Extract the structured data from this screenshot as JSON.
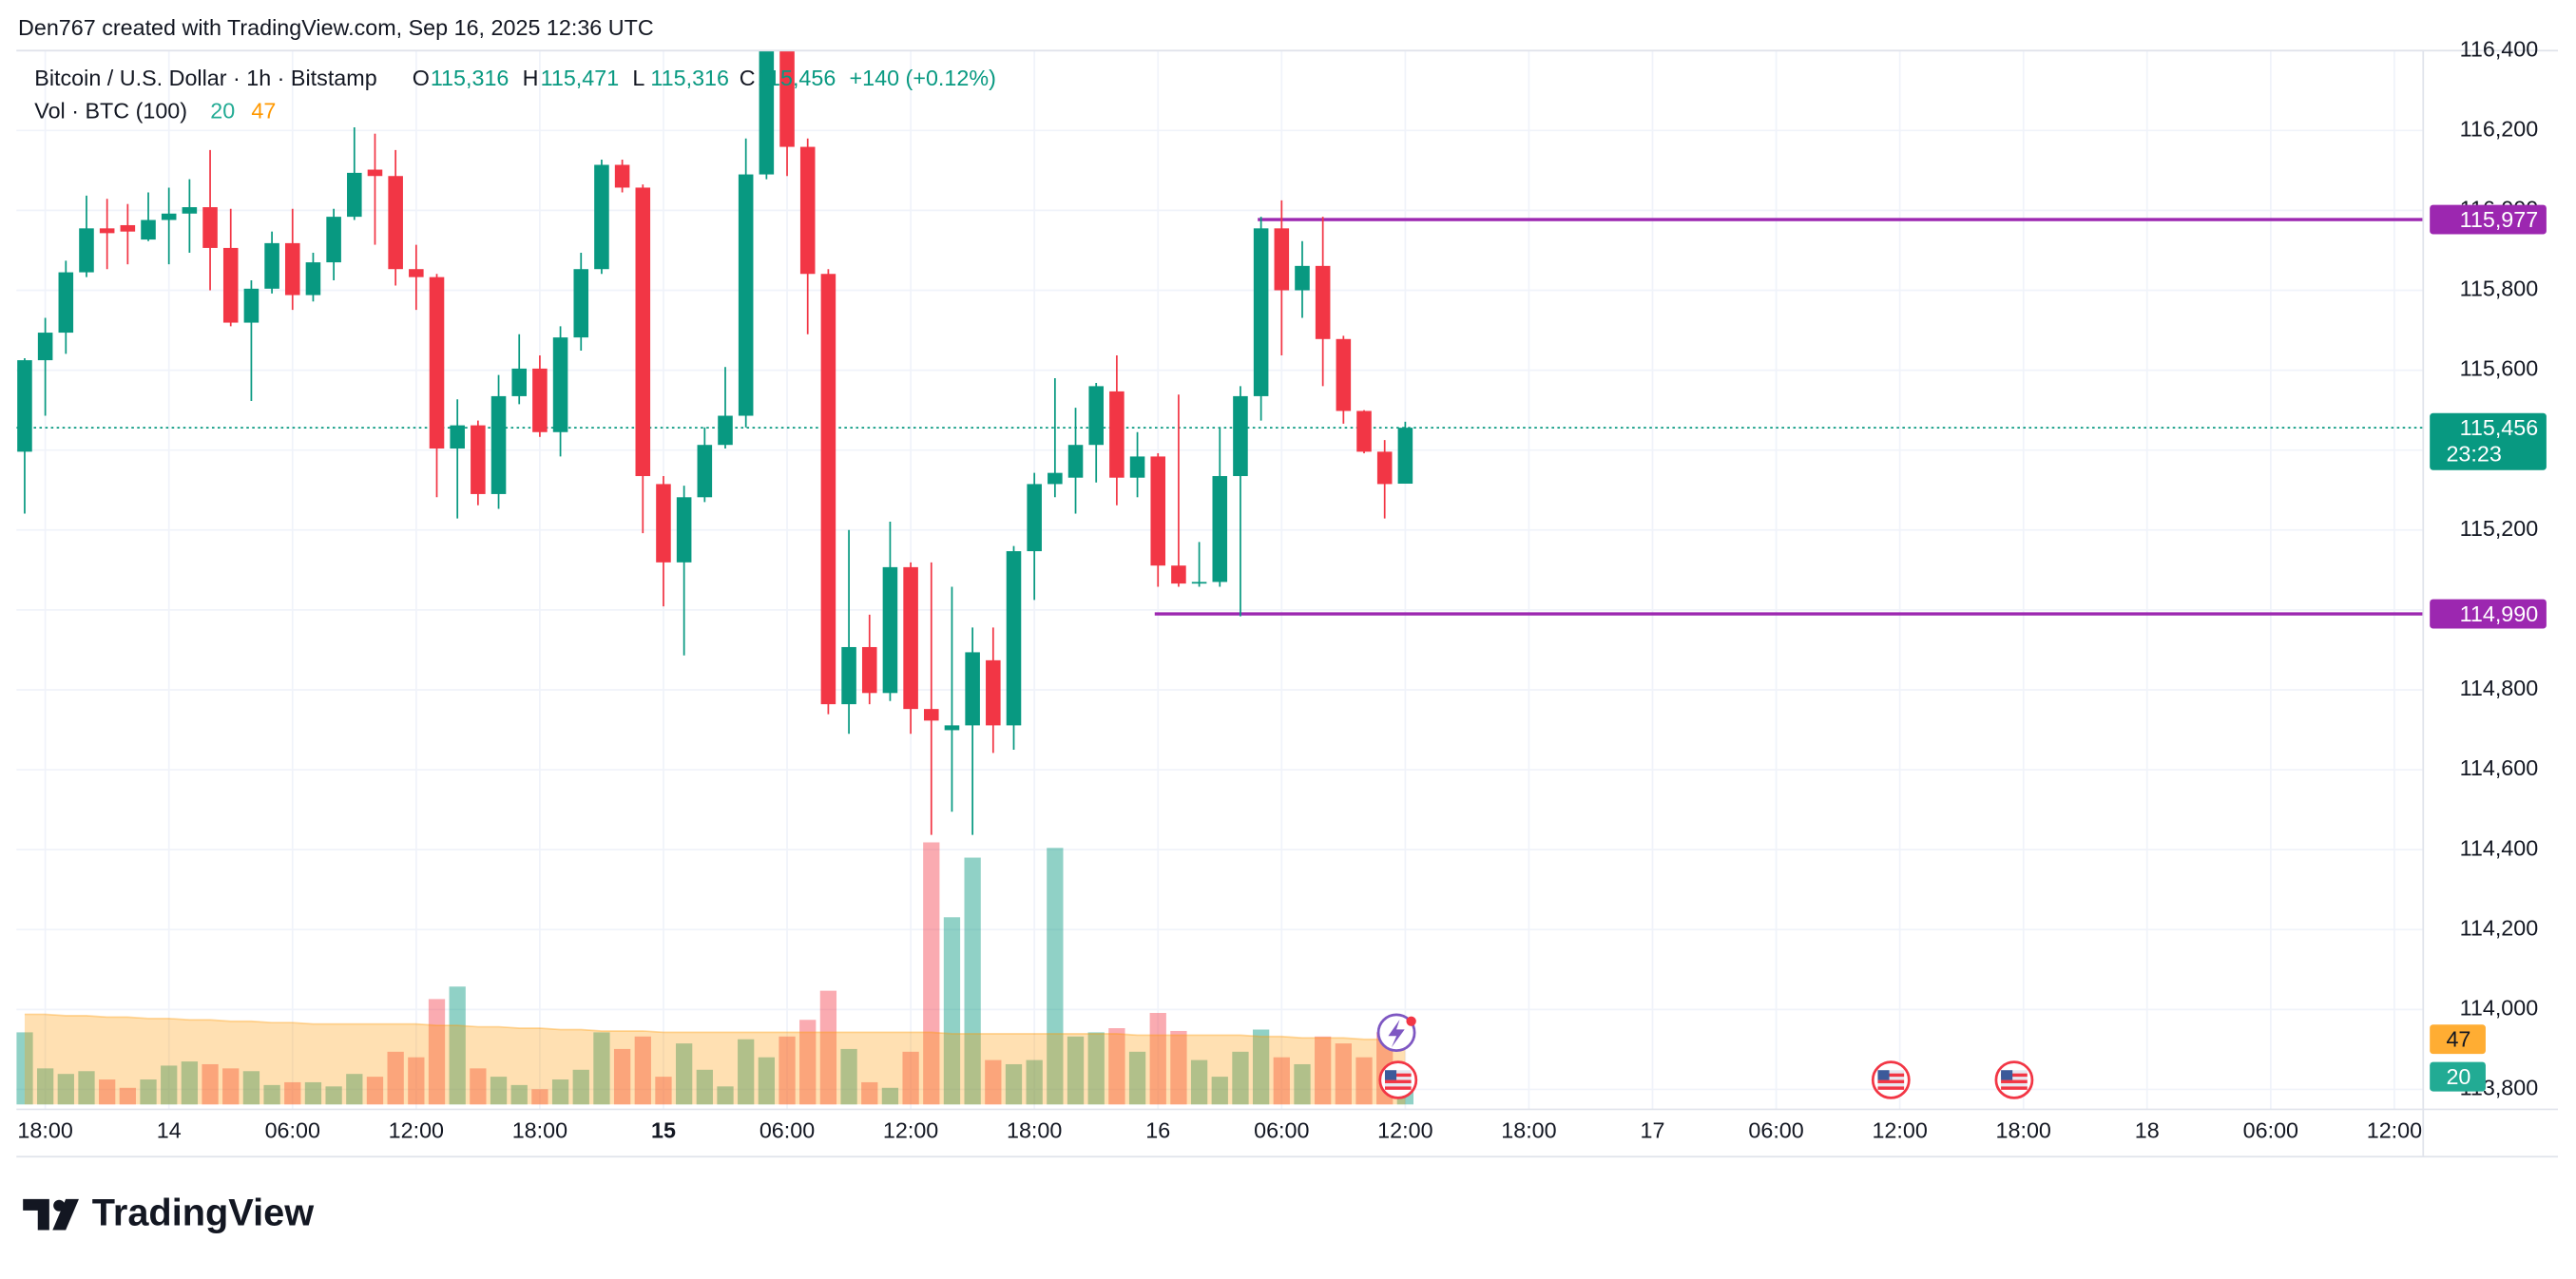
{
  "credit": "Den767 created with TradingView.com, Sep 16, 2025 12:36 UTC",
  "brand": "TradingView",
  "chart_data": {
    "type": "candlestick",
    "title": "Bitcoin / U.S. Dollar · 1h · Bitstamp",
    "ohlc_legend": [
      {
        "key": "O",
        "value": "115,316"
      },
      {
        "key": "H",
        "value": "115,471"
      },
      {
        "key": "L",
        "value": "115,316"
      },
      {
        "key": "C",
        "value": "115,456"
      }
    ],
    "change": "+140 (+0.12%)",
    "volume_title": "Vol · BTC (100)",
    "up_color": "#089981",
    "down_color": "#f23645",
    "categories": [
      "17:00",
      "18:00",
      "19:00",
      "20:00",
      "21:00",
      "22:00",
      "23:00",
      "00:00",
      "01:00",
      "02:00",
      "03:00",
      "04:00",
      "05:00",
      "06:00",
      "07:00",
      "08:00",
      "09:00",
      "10:00",
      "11:00",
      "12:00",
      "13:00",
      "14:00",
      "15:00",
      "16:00",
      "17:00",
      "18:00",
      "19:00",
      "20:00",
      "21:00",
      "22:00",
      "23:00",
      "00:00",
      "01:00",
      "02:00",
      "03:00",
      "04:00",
      "05:00",
      "06:00",
      "07:00",
      "08:00",
      "09:00",
      "10:00",
      "11:00",
      "12:00",
      "13:00",
      "14:00",
      "15:00",
      "16:00",
      "17:00",
      "18:00",
      "19:00",
      "20:00",
      "21:00",
      "22:00",
      "23:00",
      "00:00",
      "01:00",
      "02:00",
      "03:00",
      "04:00",
      "05:00",
      "06:00",
      "07:00",
      "08:00",
      "09:00",
      "10:00",
      "11:00",
      "12:00"
    ],
    "open": [
      115396,
      115625,
      115694,
      115845,
      115955,
      115963,
      115927,
      115976,
      115992,
      116008,
      115906,
      115719,
      115804,
      115918,
      115788,
      115870,
      115984,
      116102,
      116086,
      115853,
      115833,
      115404,
      115462,
      115290,
      115535,
      115604,
      115445,
      115682,
      115853,
      116114,
      116057,
      115315,
      115119,
      115282,
      115413,
      115486,
      116090,
      116420,
      116159,
      115841,
      114764,
      114907,
      114792,
      115107,
      114752,
      114699,
      114711,
      114874,
      114711,
      115147,
      115315,
      115331,
      115413,
      115547,
      115331,
      115384,
      115111,
      115066,
      115070,
      115335,
      115535,
      115955,
      115800,
      115861,
      115678,
      115498,
      115396,
      115316
    ],
    "high": [
      115630,
      115731,
      115874,
      116037,
      116029,
      116016,
      116045,
      116057,
      116078,
      116151,
      116004,
      115825,
      115947,
      116004,
      115894,
      116004,
      116208,
      116192,
      116151,
      115914,
      115841,
      115527,
      115474,
      115588,
      115690,
      115637,
      115710,
      115894,
      116127,
      116127,
      116065,
      115335,
      115311,
      115457,
      115608,
      116180,
      116480,
      116470,
      116180,
      115853,
      115200,
      114988,
      115221,
      115119,
      115119,
      115058,
      114956,
      114956,
      115160,
      115343,
      115580,
      115506,
      115568,
      115637,
      115445,
      115392,
      115539,
      115170,
      115457,
      115560,
      115984,
      116025,
      115923,
      115984,
      115686,
      115500,
      115425,
      115471
    ],
    "low": [
      115241,
      115486,
      115641,
      115833,
      115853,
      115865,
      115923,
      115865,
      115894,
      115800,
      115710,
      115523,
      115792,
      115751,
      115772,
      115825,
      115976,
      115914,
      115812,
      115751,
      115282,
      115229,
      115262,
      115253,
      115515,
      115433,
      115384,
      115649,
      115841,
      116045,
      115192,
      115009,
      114886,
      115270,
      115404,
      115457,
      116078,
      116086,
      115690,
      114739,
      114690,
      114764,
      114772,
      114690,
      114437,
      114495,
      114437,
      114642,
      114650,
      115025,
      115282,
      115241,
      115319,
      115262,
      115282,
      115058,
      115058,
      115058,
      115058,
      114984,
      115474,
      115637,
      115731,
      115560,
      115466,
      115392,
      115229,
      115316
    ],
    "close": [
      115625,
      115694,
      115845,
      115955,
      115943,
      115947,
      115976,
      115992,
      116008,
      115906,
      115719,
      115804,
      115918,
      115788,
      115870,
      115984,
      116094,
      116086,
      115853,
      115833,
      115404,
      115462,
      115290,
      115535,
      115604,
      115445,
      115682,
      115853,
      116114,
      116057,
      115335,
      115119,
      115282,
      115413,
      115486,
      116090,
      116420,
      116159,
      115841,
      114764,
      114907,
      114792,
      115107,
      114752,
      114723,
      114711,
      114894,
      114711,
      115147,
      115315,
      115343,
      115413,
      115560,
      115331,
      115384,
      115111,
      115066,
      115070,
      115335,
      115535,
      115955,
      115800,
      115861,
      115678,
      115498,
      115396,
      115315,
      115456
    ],
    "volume": [
      52,
      26,
      22,
      24,
      18,
      12,
      18,
      28,
      31,
      29,
      26,
      24,
      14,
      16,
      16,
      13,
      22,
      20,
      38,
      34,
      76,
      85,
      26,
      20,
      14,
      11,
      18,
      25,
      52,
      40,
      49,
      20,
      44,
      25,
      13,
      47,
      34,
      49,
      61,
      82,
      40,
      16,
      12,
      38,
      189,
      135,
      178,
      32,
      29,
      32,
      185,
      49,
      52,
      55,
      38,
      66,
      53,
      32,
      20,
      38,
      54,
      34,
      29,
      49,
      44,
      34,
      52,
      20
    ],
    "volume_ma": [
      65,
      65,
      64,
      64,
      63,
      63,
      62,
      62,
      61,
      61,
      60,
      60,
      59,
      59,
      58,
      58,
      58,
      58,
      58,
      58,
      57,
      57,
      56,
      56,
      55,
      55,
      54,
      54,
      53,
      53,
      53,
      52,
      52,
      52,
      52,
      52,
      52,
      52,
      52,
      52,
      52,
      52,
      52,
      52,
      52,
      51,
      51,
      51,
      51,
      51,
      51,
      51,
      51,
      51,
      50,
      50,
      50,
      50,
      50,
      50,
      49,
      49,
      48,
      48,
      48,
      47,
      47,
      47
    ],
    "volume_ma_color": "#ff9800",
    "ylim": [
      113750,
      116400
    ],
    "yticks": [
      {
        "value": 113800,
        "label": "113,800"
      },
      {
        "value": 114000,
        "label": "114,000"
      },
      {
        "value": 114200,
        "label": "114,200"
      },
      {
        "value": 114400,
        "label": "114,400"
      },
      {
        "value": 114600,
        "label": "114,600"
      },
      {
        "value": 114800,
        "label": "114,800"
      },
      {
        "value": 115000,
        "label": "115,000"
      },
      {
        "value": 115200,
        "label": "115,200"
      },
      {
        "value": 115400,
        "label": "115,400"
      },
      {
        "value": 115600,
        "label": "115,600"
      },
      {
        "value": 115800,
        "label": "115,800"
      },
      {
        "value": 116000,
        "label": "116,000"
      },
      {
        "value": 116200,
        "label": "116,200"
      },
      {
        "value": 116400,
        "label": "116,400"
      }
    ],
    "xlim": [
      -0.4,
      116.4
    ],
    "xticks": [
      {
        "value": 1,
        "label": "18:00"
      },
      {
        "value": 7,
        "label": "14"
      },
      {
        "value": 13,
        "label": "06:00"
      },
      {
        "value": 19,
        "label": "12:00"
      },
      {
        "value": 25,
        "label": "18:00"
      },
      {
        "value": 31,
        "label": "15"
      },
      {
        "value": 37,
        "label": "06:00"
      },
      {
        "value": 43,
        "label": "12:00"
      },
      {
        "value": 49,
        "label": "18:00"
      },
      {
        "value": 55,
        "label": "16"
      },
      {
        "value": 61,
        "label": "06:00"
      },
      {
        "value": 67,
        "label": "12:00"
      },
      {
        "value": 73,
        "label": "18:00"
      },
      {
        "value": 79,
        "label": "17"
      },
      {
        "value": 85,
        "label": "06:00"
      },
      {
        "value": 91,
        "label": "12:00"
      },
      {
        "value": 97,
        "label": "18:00"
      },
      {
        "value": 103,
        "label": "18"
      },
      {
        "value": 109,
        "label": "06:00"
      },
      {
        "value": 115,
        "label": "12:00"
      }
    ],
    "grid": true,
    "level_color": "#9c27b0",
    "levels": [
      {
        "value": 115977,
        "label": "115,977"
      },
      {
        "value": 114990,
        "label": "114,990"
      }
    ],
    "last_price_label": "115,456",
    "countdown": "23:23"
  }
}
